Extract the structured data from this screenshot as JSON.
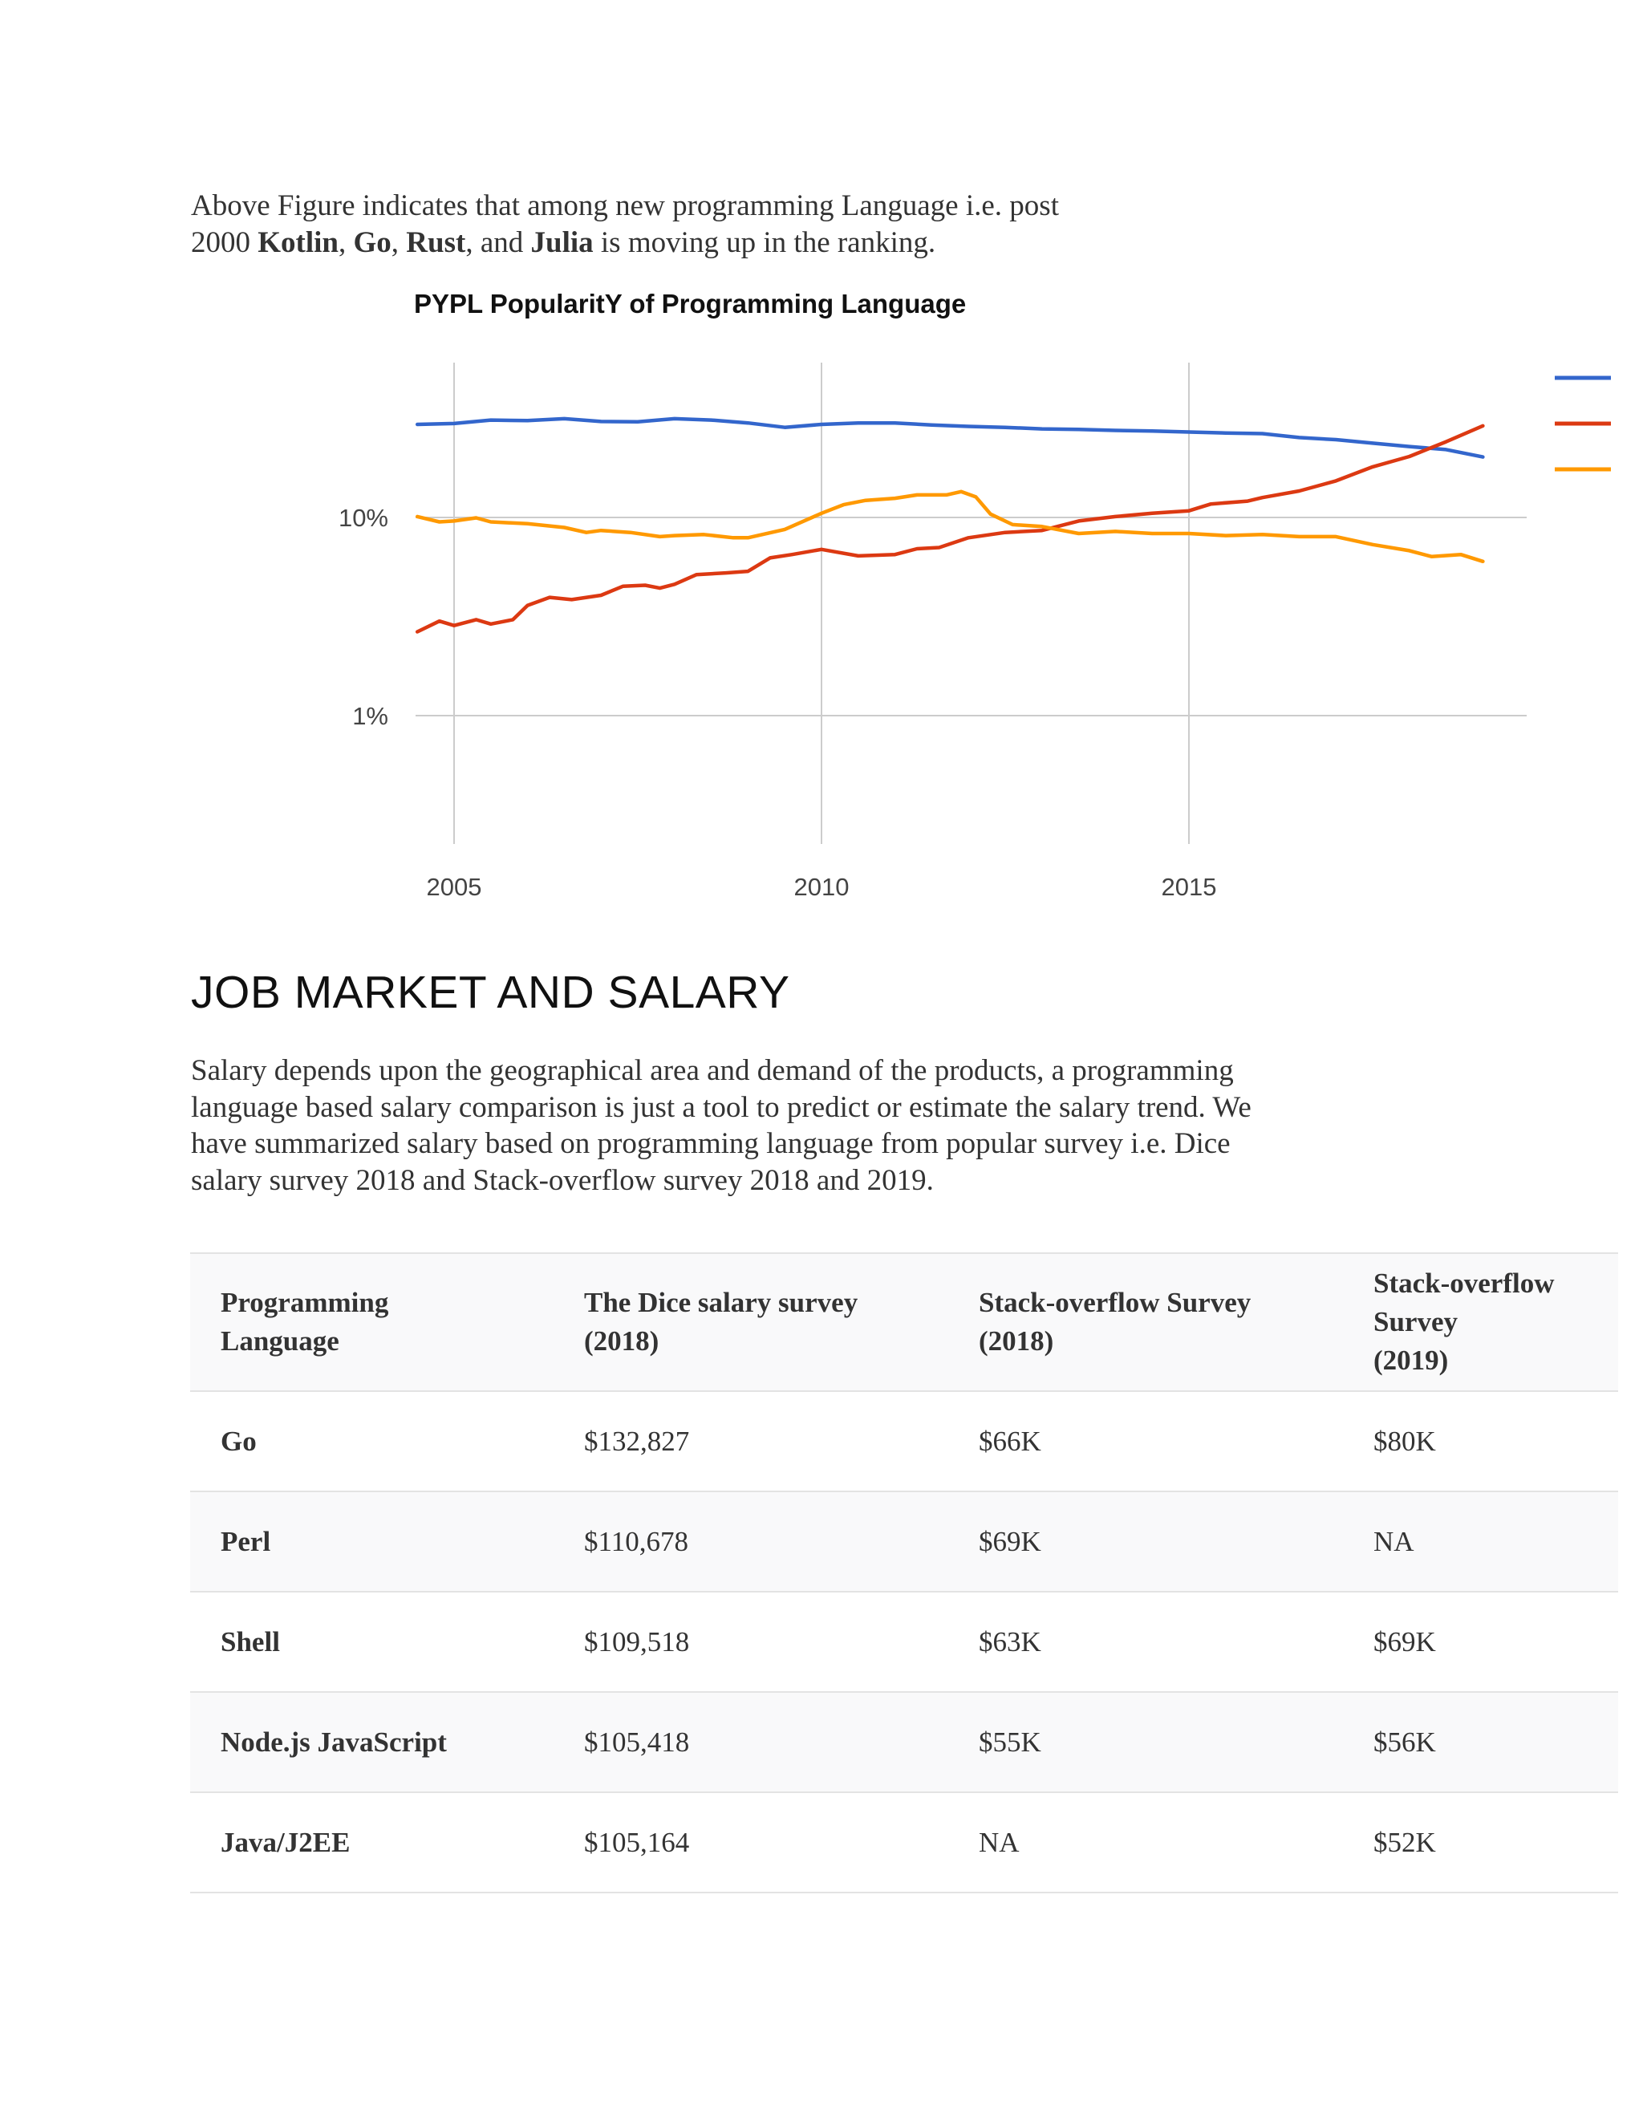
{
  "intro": {
    "line1": "Above Figure indicates that among new programming Language i.e. post",
    "line2_start": "2000 ",
    "kotlin": "Kotlin",
    "comma1": ", ",
    "go": "Go",
    "comma2": ", ",
    "rust": "Rust",
    "and": ", and ",
    "julia": "Julia",
    "line2_end": " is moving up in the ranking."
  },
  "chart_data": {
    "type": "line",
    "title": "PYPL PopularitY of Programming Language",
    "y_scale": "log",
    "ylim": [
      0.4,
      60
    ],
    "xlim": [
      2004.5,
      2019.1
    ],
    "y_ticks": [
      1,
      10
    ],
    "y_tick_labels": [
      "1%",
      "10%"
    ],
    "x_ticks": [
      2005,
      2010,
      2015
    ],
    "x_tick_labels": [
      "2005",
      "2010",
      "2015"
    ],
    "grid": true,
    "legend": "right",
    "series": [
      {
        "color": "#3366cc",
        "points": [
          [
            2004.5,
            29.5
          ],
          [
            2005.0,
            29.8
          ],
          [
            2005.5,
            31.0
          ],
          [
            2006.0,
            30.8
          ],
          [
            2006.5,
            31.5
          ],
          [
            2007.0,
            30.5
          ],
          [
            2007.5,
            30.4
          ],
          [
            2008.0,
            31.5
          ],
          [
            2008.5,
            31.0
          ],
          [
            2009.0,
            30.0
          ],
          [
            2009.5,
            28.5
          ],
          [
            2010.0,
            29.5
          ],
          [
            2010.5,
            30.0
          ],
          [
            2011.0,
            30.0
          ],
          [
            2011.5,
            29.3
          ],
          [
            2012.0,
            28.8
          ],
          [
            2012.5,
            28.5
          ],
          [
            2013.0,
            28.0
          ],
          [
            2013.5,
            27.8
          ],
          [
            2014.0,
            27.5
          ],
          [
            2014.5,
            27.3
          ],
          [
            2015.0,
            27.0
          ],
          [
            2015.5,
            26.7
          ],
          [
            2016.0,
            26.5
          ],
          [
            2016.5,
            25.3
          ],
          [
            2017.0,
            24.7
          ],
          [
            2017.5,
            23.7
          ],
          [
            2018.0,
            22.8
          ],
          [
            2018.5,
            22.0
          ],
          [
            2019.0,
            20.2
          ]
        ]
      },
      {
        "color": "#dc3912",
        "points": [
          [
            2004.5,
            2.65
          ],
          [
            2004.8,
            3.0
          ],
          [
            2005.0,
            2.85
          ],
          [
            2005.3,
            3.05
          ],
          [
            2005.5,
            2.9
          ],
          [
            2005.8,
            3.05
          ],
          [
            2006.0,
            3.6
          ],
          [
            2006.3,
            3.95
          ],
          [
            2006.6,
            3.85
          ],
          [
            2007.0,
            4.05
          ],
          [
            2007.3,
            4.5
          ],
          [
            2007.6,
            4.55
          ],
          [
            2007.8,
            4.4
          ],
          [
            2008.0,
            4.6
          ],
          [
            2008.3,
            5.15
          ],
          [
            2008.7,
            5.25
          ],
          [
            2009.0,
            5.35
          ],
          [
            2009.3,
            6.25
          ],
          [
            2009.6,
            6.5
          ],
          [
            2010.0,
            6.9
          ],
          [
            2010.5,
            6.4
          ],
          [
            2011.0,
            6.5
          ],
          [
            2011.3,
            6.95
          ],
          [
            2011.6,
            7.05
          ],
          [
            2012.0,
            7.9
          ],
          [
            2012.5,
            8.4
          ],
          [
            2013.0,
            8.6
          ],
          [
            2013.5,
            9.6
          ],
          [
            2014.0,
            10.1
          ],
          [
            2014.5,
            10.5
          ],
          [
            2015.0,
            10.8
          ],
          [
            2015.3,
            11.7
          ],
          [
            2015.8,
            12.1
          ],
          [
            2016.0,
            12.6
          ],
          [
            2016.5,
            13.6
          ],
          [
            2017.0,
            15.3
          ],
          [
            2017.5,
            18.0
          ],
          [
            2018.0,
            20.3
          ],
          [
            2018.5,
            24.1
          ],
          [
            2019.0,
            29.0
          ]
        ]
      },
      {
        "color": "#ff9900",
        "points": [
          [
            2004.5,
            10.1
          ],
          [
            2004.8,
            9.5
          ],
          [
            2005.0,
            9.6
          ],
          [
            2005.3,
            9.95
          ],
          [
            2005.5,
            9.5
          ],
          [
            2006.0,
            9.3
          ],
          [
            2006.5,
            8.9
          ],
          [
            2006.8,
            8.4
          ],
          [
            2007.0,
            8.6
          ],
          [
            2007.4,
            8.4
          ],
          [
            2007.8,
            8.0
          ],
          [
            2008.0,
            8.1
          ],
          [
            2008.4,
            8.2
          ],
          [
            2008.8,
            7.9
          ],
          [
            2009.0,
            7.9
          ],
          [
            2009.5,
            8.7
          ],
          [
            2010.0,
            10.5
          ],
          [
            2010.3,
            11.6
          ],
          [
            2010.6,
            12.2
          ],
          [
            2011.0,
            12.5
          ],
          [
            2011.3,
            13.0
          ],
          [
            2011.7,
            13.0
          ],
          [
            2011.9,
            13.5
          ],
          [
            2012.1,
            12.7
          ],
          [
            2012.3,
            10.4
          ],
          [
            2012.6,
            9.2
          ],
          [
            2013.0,
            9.0
          ],
          [
            2013.5,
            8.3
          ],
          [
            2014.0,
            8.5
          ],
          [
            2014.5,
            8.3
          ],
          [
            2015.0,
            8.3
          ],
          [
            2015.5,
            8.1
          ],
          [
            2016.0,
            8.2
          ],
          [
            2016.5,
            8.0
          ],
          [
            2017.0,
            8.0
          ],
          [
            2017.5,
            7.3
          ],
          [
            2018.0,
            6.8
          ],
          [
            2018.3,
            6.35
          ],
          [
            2018.7,
            6.5
          ],
          [
            2019.0,
            6.0
          ]
        ]
      }
    ]
  },
  "section": {
    "heading": "JOB MARKET AND SALARY",
    "body_lines": [
      "Salary depends upon the geographical area and demand of the products, a programming",
      "language based salary comparison is just a tool to predict or estimate the salary trend. We",
      "have summarized salary based on programming language from popular survey i.e. Dice",
      "salary survey 2018 and Stack-overflow survey 2018 and 2019."
    ]
  },
  "table": {
    "headers": [
      [
        "Programming",
        "Language"
      ],
      [
        "The Dice salary survey",
        "(2018)"
      ],
      [
        "Stack-overflow Survey",
        "(2018)"
      ],
      [
        "Stack-overflow Survey",
        "(2019)"
      ]
    ],
    "rows": [
      [
        "Go",
        "$132,827",
        "$66K",
        "$80K"
      ],
      [
        "Perl",
        "$110,678",
        "$69K",
        "NA"
      ],
      [
        "Shell",
        "$109,518",
        "$63K",
        "$69K"
      ],
      [
        "Node.js JavaScript",
        "$105,418",
        "$55K",
        "$56K"
      ],
      [
        "Java/J2EE",
        "$105,164",
        "NA",
        "$52K"
      ]
    ]
  }
}
